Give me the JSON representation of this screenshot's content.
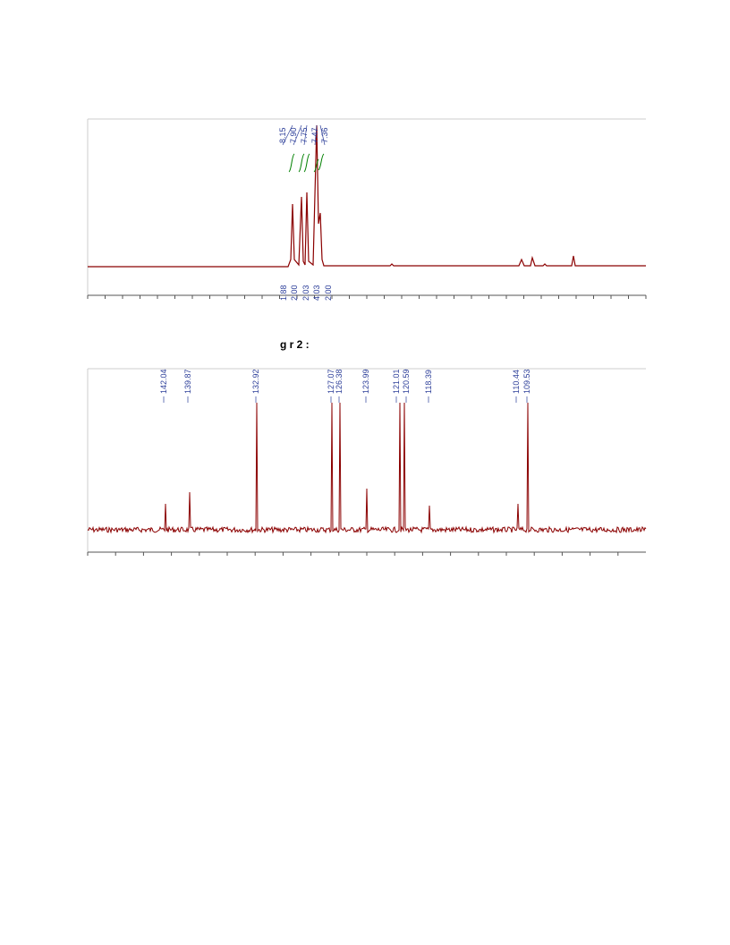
{
  "h1": {
    "shifts": [
      "8.15",
      "7.90",
      "7.75",
      "7.47",
      "7.36"
    ],
    "integrals": [
      "1.88",
      "2.00",
      "2.03",
      "4.03",
      "2.00"
    ]
  },
  "caption": "g r 2 :",
  "c13": {
    "shifts": [
      "142.04",
      "139.87",
      "132.92",
      "127.07",
      "126.38",
      "123.99",
      "121.01",
      "120.59",
      "118.39",
      "110.44",
      "109.53"
    ]
  }
}
